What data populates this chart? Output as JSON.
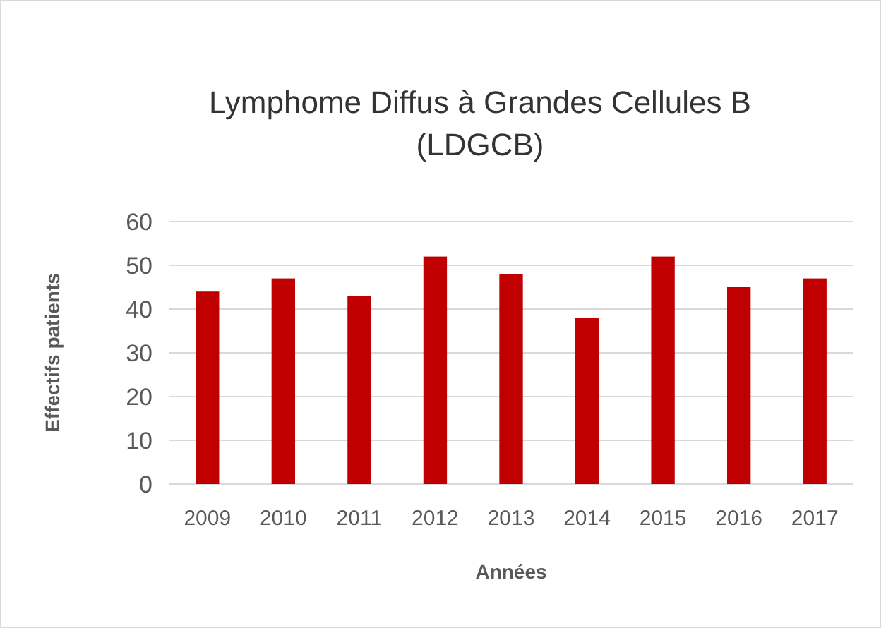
{
  "chart_data": {
    "type": "bar",
    "title": "Lymphome Diffus à Grandes Cellules B (LDGCB)",
    "xlabel": "Années",
    "ylabel": "Effectifs patients",
    "categories": [
      "2009",
      "2010",
      "2011",
      "2012",
      "2013",
      "2014",
      "2015",
      "2016",
      "2017"
    ],
    "values": [
      44,
      47,
      43,
      52,
      48,
      38,
      52,
      45,
      47
    ],
    "color": "#c00000",
    "ylim": [
      0,
      60
    ],
    "yticks": [
      0,
      10,
      20,
      30,
      40,
      50,
      60
    ],
    "grid": "y"
  }
}
